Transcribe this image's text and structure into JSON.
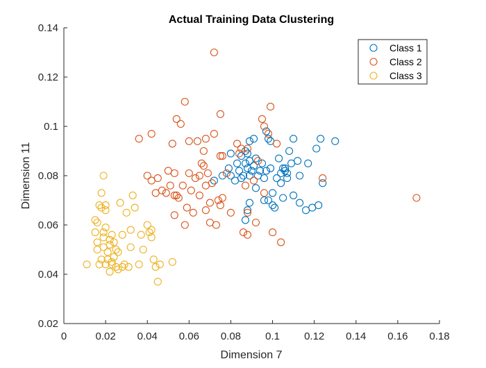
{
  "chart_data": {
    "type": "scatter",
    "title": "Actual Training Data Clustering",
    "xlabel": "Dimension 7",
    "ylabel": "Dimension 11",
    "xlim": [
      0,
      0.18
    ],
    "ylim": [
      0.02,
      0.14
    ],
    "xticks": [
      0,
      0.02,
      0.04,
      0.06,
      0.08,
      0.1,
      0.12,
      0.14,
      0.16,
      0.18
    ],
    "xtick_labels": [
      "0",
      "0.02",
      "0.04",
      "0.06",
      "0.08",
      "0.1",
      "0.12",
      "0.14",
      "0.16",
      "0.18"
    ],
    "yticks": [
      0.02,
      0.04,
      0.06,
      0.08,
      0.1,
      0.12,
      0.14
    ],
    "ytick_labels": [
      "0.02",
      "0.04",
      "0.06",
      "0.08",
      "0.1",
      "0.12",
      "0.14"
    ],
    "grid": false,
    "legend_position": "top-right",
    "marker": "open-circle",
    "series": [
      {
        "name": "Class 1",
        "color": "#0072BD",
        "points": [
          [
            0.072,
            0.078
          ],
          [
            0.076,
            0.08
          ],
          [
            0.079,
            0.083
          ],
          [
            0.08,
            0.089
          ],
          [
            0.08,
            0.08
          ],
          [
            0.082,
            0.078
          ],
          [
            0.083,
            0.085
          ],
          [
            0.084,
            0.082
          ],
          [
            0.085,
            0.079
          ],
          [
            0.085,
            0.088
          ],
          [
            0.086,
            0.08
          ],
          [
            0.087,
            0.085
          ],
          [
            0.087,
            0.09
          ],
          [
            0.088,
            0.083
          ],
          [
            0.088,
            0.089
          ],
          [
            0.089,
            0.094
          ],
          [
            0.089,
            0.086
          ],
          [
            0.089,
            0.08
          ],
          [
            0.09,
            0.082
          ],
          [
            0.091,
            0.084
          ],
          [
            0.091,
            0.095
          ],
          [
            0.092,
            0.087
          ],
          [
            0.092,
            0.075
          ],
          [
            0.093,
            0.08
          ],
          [
            0.094,
            0.082
          ],
          [
            0.095,
            0.085
          ],
          [
            0.096,
            0.079
          ],
          [
            0.096,
            0.07
          ],
          [
            0.097,
            0.098
          ],
          [
            0.097,
            0.082
          ],
          [
            0.098,
            0.07
          ],
          [
            0.098,
            0.095
          ],
          [
            0.099,
            0.083
          ],
          [
            0.099,
            0.094
          ],
          [
            0.1,
            0.068
          ],
          [
            0.1,
            0.073
          ],
          [
            0.101,
            0.067
          ],
          [
            0.102,
            0.079
          ],
          [
            0.103,
            0.087
          ],
          [
            0.104,
            0.081
          ],
          [
            0.104,
            0.077
          ],
          [
            0.105,
            0.071
          ],
          [
            0.105,
            0.083
          ],
          [
            0.106,
            0.082
          ],
          [
            0.106,
            0.083
          ],
          [
            0.107,
            0.079
          ],
          [
            0.107,
            0.081
          ],
          [
            0.108,
            0.09
          ],
          [
            0.109,
            0.085
          ],
          [
            0.11,
            0.095
          ],
          [
            0.11,
            0.072
          ],
          [
            0.112,
            0.086
          ],
          [
            0.113,
            0.069
          ],
          [
            0.113,
            0.08
          ],
          [
            0.116,
            0.066
          ],
          [
            0.117,
            0.085
          ],
          [
            0.119,
            0.067
          ],
          [
            0.121,
            0.091
          ],
          [
            0.122,
            0.068
          ],
          [
            0.123,
            0.095
          ],
          [
            0.124,
            0.077
          ],
          [
            0.13,
            0.094
          ],
          [
            0.087,
            0.062
          ],
          [
            0.088,
            0.066
          ],
          [
            0.089,
            0.069
          ]
        ]
      },
      {
        "name": "Class 2",
        "color": "#D95319",
        "points": [
          [
            0.036,
            0.095
          ],
          [
            0.04,
            0.08
          ],
          [
            0.042,
            0.078
          ],
          [
            0.042,
            0.097
          ],
          [
            0.044,
            0.073
          ],
          [
            0.045,
            0.079
          ],
          [
            0.047,
            0.074
          ],
          [
            0.049,
            0.073
          ],
          [
            0.05,
            0.082
          ],
          [
            0.051,
            0.076
          ],
          [
            0.052,
            0.093
          ],
          [
            0.053,
            0.081
          ],
          [
            0.053,
            0.064
          ],
          [
            0.053,
            0.072
          ],
          [
            0.054,
            0.103
          ],
          [
            0.054,
            0.072
          ],
          [
            0.055,
            0.071
          ],
          [
            0.056,
            0.101
          ],
          [
            0.057,
            0.076
          ],
          [
            0.058,
            0.11
          ],
          [
            0.058,
            0.06
          ],
          [
            0.059,
            0.067
          ],
          [
            0.06,
            0.094
          ],
          [
            0.06,
            0.081
          ],
          [
            0.061,
            0.074
          ],
          [
            0.062,
            0.065
          ],
          [
            0.063,
            0.079
          ],
          [
            0.064,
            0.094
          ],
          [
            0.065,
            0.072
          ],
          [
            0.065,
            0.08
          ],
          [
            0.066,
            0.085
          ],
          [
            0.067,
            0.084
          ],
          [
            0.067,
            0.09
          ],
          [
            0.068,
            0.095
          ],
          [
            0.068,
            0.076
          ],
          [
            0.068,
            0.066
          ],
          [
            0.069,
            0.081
          ],
          [
            0.07,
            0.069
          ],
          [
            0.07,
            0.061
          ],
          [
            0.071,
            0.077
          ],
          [
            0.072,
            0.13
          ],
          [
            0.072,
            0.097
          ],
          [
            0.073,
            0.06
          ],
          [
            0.074,
            0.07
          ],
          [
            0.075,
            0.105
          ],
          [
            0.075,
            0.088
          ],
          [
            0.075,
            0.068
          ],
          [
            0.076,
            0.071
          ],
          [
            0.076,
            0.088
          ],
          [
            0.078,
            0.081
          ],
          [
            0.08,
            0.065
          ],
          [
            0.083,
            0.093
          ],
          [
            0.084,
            0.089
          ],
          [
            0.085,
            0.091
          ],
          [
            0.086,
            0.057
          ],
          [
            0.087,
            0.076
          ],
          [
            0.088,
            0.065
          ],
          [
            0.088,
            0.091
          ],
          [
            0.088,
            0.056
          ],
          [
            0.091,
            0.078
          ],
          [
            0.092,
            0.061
          ],
          [
            0.093,
            0.086
          ],
          [
            0.095,
            0.103
          ],
          [
            0.096,
            0.1
          ],
          [
            0.096,
            0.073
          ],
          [
            0.098,
            0.097
          ],
          [
            0.099,
            0.108
          ],
          [
            0.1,
            0.057
          ],
          [
            0.102,
            0.093
          ],
          [
            0.104,
            0.053
          ],
          [
            0.124,
            0.079
          ],
          [
            0.169,
            0.071
          ]
        ]
      },
      {
        "name": "Class 3",
        "color": "#EDB120",
        "points": [
          [
            0.011,
            0.044
          ],
          [
            0.015,
            0.057
          ],
          [
            0.015,
            0.062
          ],
          [
            0.016,
            0.053
          ],
          [
            0.016,
            0.061
          ],
          [
            0.016,
            0.05
          ],
          [
            0.017,
            0.044
          ],
          [
            0.017,
            0.068
          ],
          [
            0.018,
            0.046
          ],
          [
            0.018,
            0.067
          ],
          [
            0.018,
            0.073
          ],
          [
            0.019,
            0.08
          ],
          [
            0.019,
            0.055
          ],
          [
            0.019,
            0.051
          ],
          [
            0.019,
            0.057
          ],
          [
            0.02,
            0.059
          ],
          [
            0.02,
            0.068
          ],
          [
            0.02,
            0.066
          ],
          [
            0.02,
            0.044
          ],
          [
            0.021,
            0.046
          ],
          [
            0.021,
            0.049
          ],
          [
            0.022,
            0.054
          ],
          [
            0.022,
            0.041
          ],
          [
            0.022,
            0.052
          ],
          [
            0.023,
            0.044
          ],
          [
            0.023,
            0.056
          ],
          [
            0.023,
            0.045
          ],
          [
            0.024,
            0.047
          ],
          [
            0.024,
            0.053
          ],
          [
            0.025,
            0.05
          ],
          [
            0.025,
            0.043
          ],
          [
            0.026,
            0.049
          ],
          [
            0.026,
            0.042
          ],
          [
            0.027,
            0.069
          ],
          [
            0.028,
            0.043
          ],
          [
            0.028,
            0.056
          ],
          [
            0.029,
            0.044
          ],
          [
            0.03,
            0.065
          ],
          [
            0.031,
            0.043
          ],
          [
            0.032,
            0.051
          ],
          [
            0.033,
            0.072
          ],
          [
            0.034,
            0.067
          ],
          [
            0.036,
            0.044
          ],
          [
            0.038,
            0.05
          ],
          [
            0.04,
            0.06
          ],
          [
            0.041,
            0.057
          ],
          [
            0.042,
            0.055
          ],
          [
            0.042,
            0.058
          ],
          [
            0.043,
            0.046
          ],
          [
            0.044,
            0.043
          ],
          [
            0.045,
            0.037
          ],
          [
            0.046,
            0.044
          ],
          [
            0.052,
            0.045
          ],
          [
            0.032,
            0.058
          ],
          [
            0.037,
            0.056
          ]
        ]
      }
    ]
  }
}
